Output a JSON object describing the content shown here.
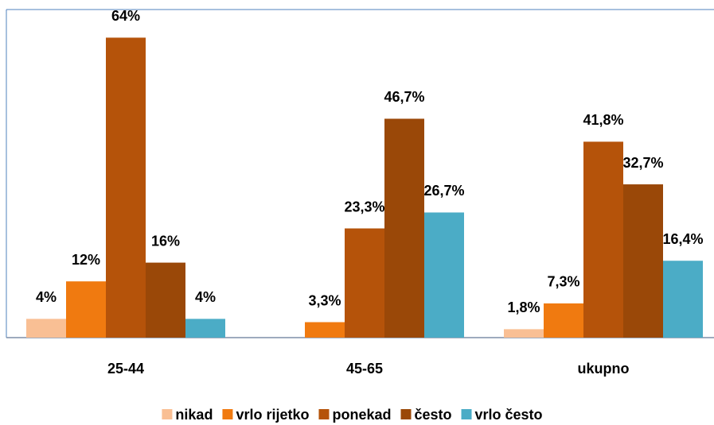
{
  "chart_data": {
    "type": "bar",
    "categories": [
      "25-44",
      "45-65",
      "ukupno"
    ],
    "series": [
      {
        "name": "nikad",
        "color": "#f9bf94",
        "values": [
          4,
          null,
          1.8
        ],
        "value_labels": [
          "4%",
          null,
          "1,8%"
        ]
      },
      {
        "name": "vrlo rijetko",
        "color": "#f07a10",
        "values": [
          12,
          3.3,
          7.3
        ],
        "value_labels": [
          "12%",
          "3,3%",
          "7,3%"
        ]
      },
      {
        "name": "ponekad",
        "color": "#b5530a",
        "values": [
          64,
          23.3,
          41.8
        ],
        "value_labels": [
          "64%",
          "23,3%",
          "41,8%"
        ]
      },
      {
        "name": "često",
        "color": "#9a4808",
        "values": [
          16,
          46.7,
          32.7
        ],
        "value_labels": [
          "16%",
          "46,7%",
          "32,7%"
        ]
      },
      {
        "name": "vrlo često",
        "color": "#4bacc6",
        "values": [
          4,
          26.7,
          16.4
        ],
        "value_labels": [
          "4%",
          "26,7%",
          "16,4%"
        ]
      }
    ],
    "ylim": [
      0,
      70
    ],
    "legend": "bottom"
  }
}
